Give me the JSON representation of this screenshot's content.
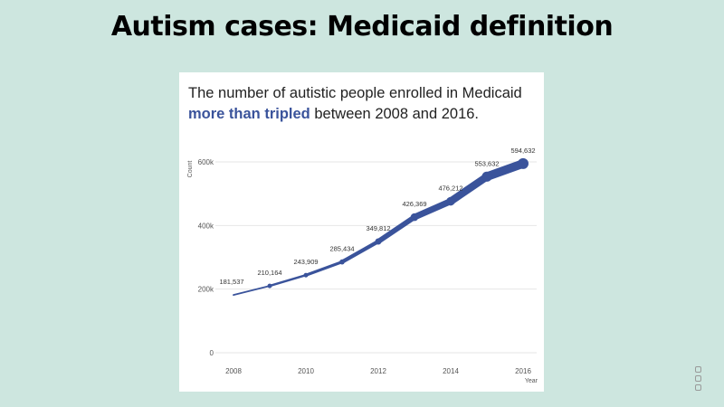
{
  "slide": {
    "title": "Autism cases: Medicaid definition"
  },
  "headline": {
    "part1": "The number of autistic people enrolled in Medicaid",
    "highlight": "more than tripled",
    "part2": " between 2008 and 2016."
  },
  "colors": {
    "background": "#cde6df",
    "line": "#3a539b",
    "highlight": "#3a539b",
    "grid": "#e6e6e6"
  },
  "chart_data": {
    "type": "line",
    "xlabel": "Year",
    "ylabel": "Count",
    "x": [
      2008,
      2009,
      2010,
      2011,
      2012,
      2013,
      2014,
      2015,
      2016
    ],
    "series": [
      {
        "values": [
          181537,
          210164,
          243909,
          285434,
          349812,
          426369,
          476212,
          553632,
          594632
        ]
      }
    ],
    "data_labels": [
      "181,537",
      "210,164",
      "243,909",
      "285,434",
      "349,812",
      "426,369",
      "476,212",
      "553,632",
      "594,632"
    ],
    "xticks": [
      "2008",
      "2010",
      "2012",
      "2014",
      "2016"
    ],
    "yticks": [
      "0",
      "200k",
      "400k",
      "600k"
    ],
    "ylim": [
      0,
      600000
    ],
    "xlim": [
      2008,
      2016
    ],
    "grid": true,
    "line_width_grows_with_value": true
  }
}
